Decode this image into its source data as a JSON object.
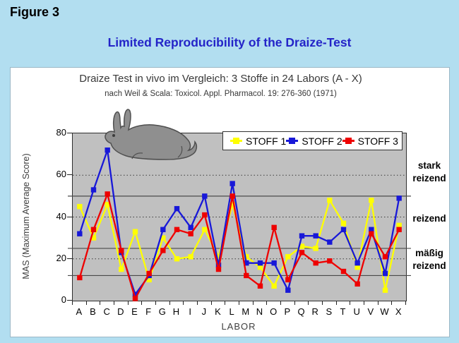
{
  "page": {
    "figure_label": "Figure 3",
    "main_title": "Limited Reproducibility of the Draize-Test",
    "main_title_color": "#2424C8",
    "background_color": "#B2DEF0"
  },
  "chart_data": {
    "type": "line",
    "title": "Draize Test in vivo im Vergleich: 3  Stoffe in 24 Labors (A - X)",
    "subtitle": "nach Weil & Scala:  Toxicol. Appl. Pharmacol. 19: 276-360 (1971)",
    "xlabel": "LABOR",
    "ylabel": "MAS (Maximum Average Score)",
    "ylim": [
      0,
      80
    ],
    "yticks": [
      0,
      20,
      40,
      60,
      80
    ],
    "grid_dotted": [
      20,
      40,
      60
    ],
    "boundary_lines": [
      12,
      25,
      50
    ],
    "plot_background": "#C0C0C0",
    "legend_position": "top-inside",
    "categories": [
      "A",
      "B",
      "C",
      "D",
      "E",
      "F",
      "G",
      "H",
      "I",
      "J",
      "K",
      "L",
      "M",
      "N",
      "O",
      "P",
      "Q",
      "R",
      "S",
      "T",
      "U",
      "V",
      "W",
      "X"
    ],
    "series": [
      {
        "name": "STOFF 1",
        "color": "#FFFF00",
        "values": [
          45,
          30,
          46,
          15,
          33,
          10,
          30,
          20,
          21,
          34,
          21,
          46,
          21,
          16,
          7,
          21,
          26,
          25,
          48,
          37,
          16,
          48,
          5,
          36
        ]
      },
      {
        "name": "STOFF 2",
        "color": "#1818D8",
        "values": [
          32,
          53,
          72,
          23,
          3,
          12,
          34,
          44,
          35,
          50,
          17,
          56,
          18,
          18,
          18,
          5,
          31,
          31,
          28,
          34,
          18,
          34,
          13,
          49
        ]
      },
      {
        "name": "STOFF 3",
        "color": "#EE0000",
        "values": [
          11,
          34,
          51,
          24,
          1,
          13,
          24,
          34,
          32,
          41,
          15,
          50,
          12,
          7,
          35,
          10,
          23,
          18,
          19,
          14,
          8,
          32,
          21,
          34
        ]
      }
    ],
    "annotations": [
      {
        "text": "stark\nreizend",
        "at_value": 57
      },
      {
        "text": "reizend",
        "at_value": 38
      },
      {
        "text": "mäßig\nreizend",
        "at_value": 18
      }
    ]
  }
}
